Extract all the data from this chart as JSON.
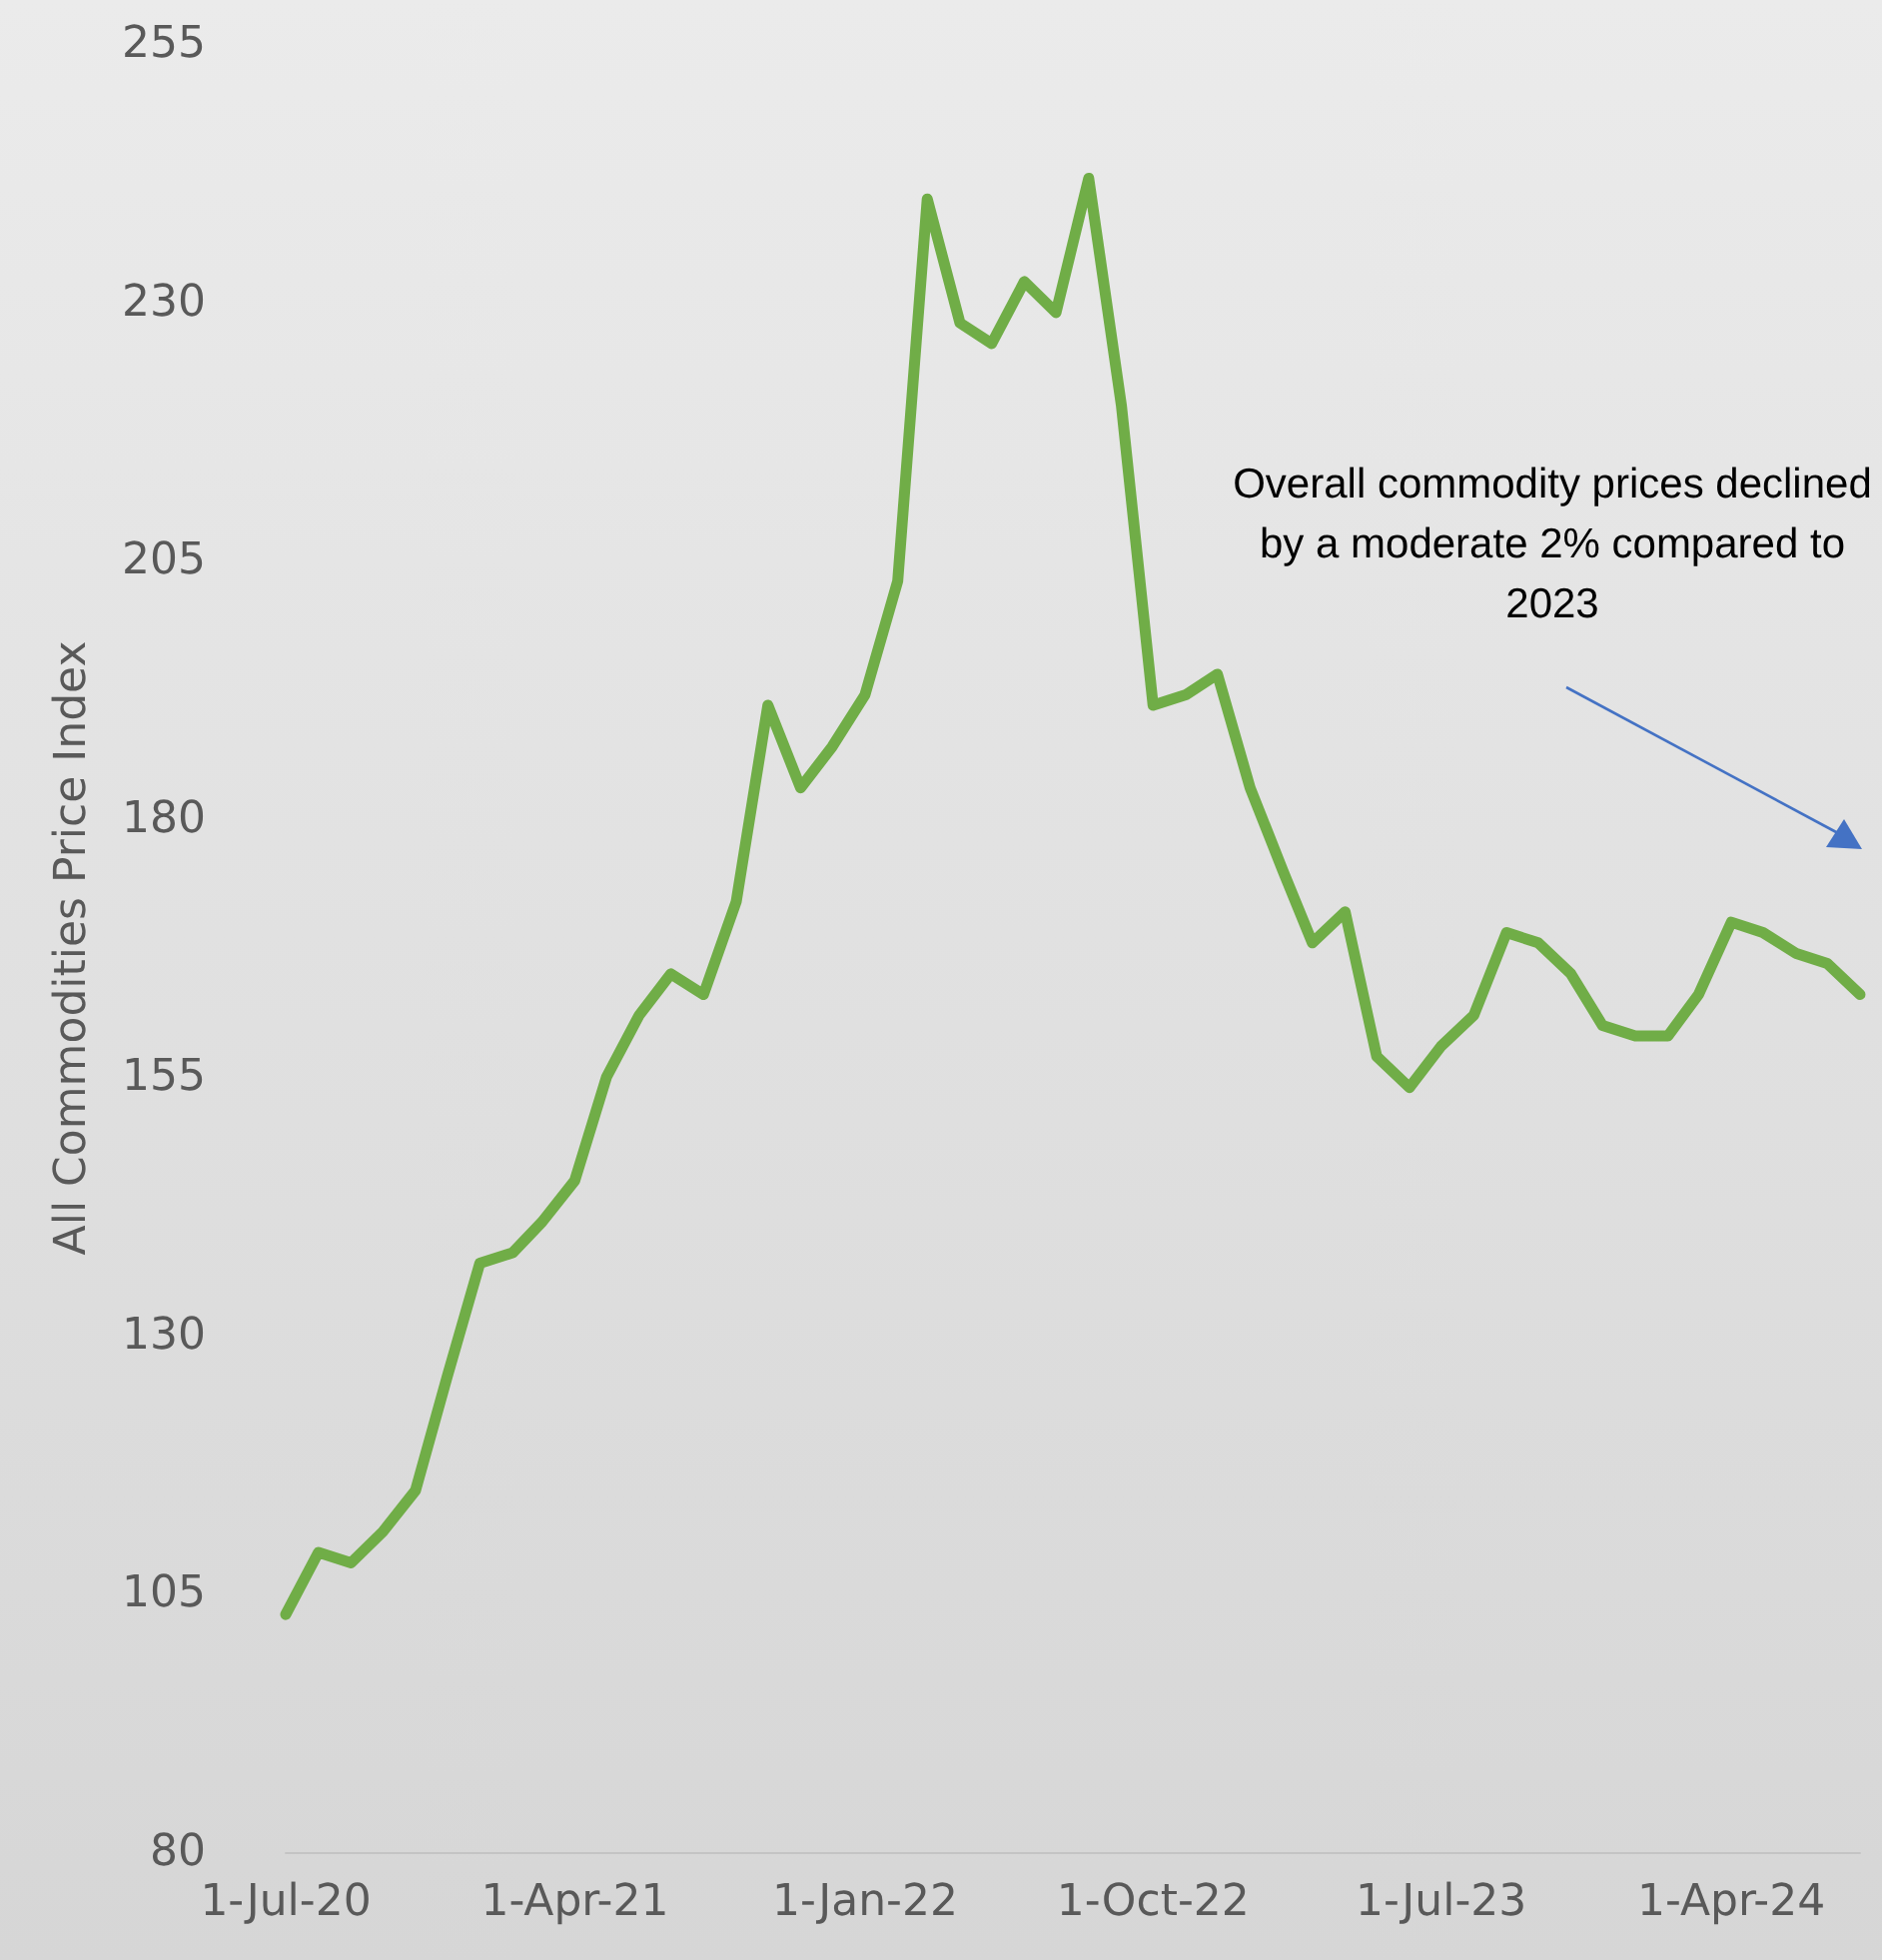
{
  "chart_data": {
    "type": "line",
    "ylabel": "All Commodities Price Index",
    "x": [
      "2020-07-01",
      "2020-08-01",
      "2020-09-01",
      "2020-10-01",
      "2020-11-01",
      "2020-12-01",
      "2021-01-01",
      "2021-02-01",
      "2021-03-01",
      "2021-04-01",
      "2021-05-01",
      "2021-06-01",
      "2021-07-01",
      "2021-08-01",
      "2021-09-01",
      "2021-10-01",
      "2021-11-01",
      "2021-12-01",
      "2022-01-01",
      "2022-02-01",
      "2022-03-01",
      "2022-04-01",
      "2022-05-01",
      "2022-06-01",
      "2022-07-01",
      "2022-08-01",
      "2022-09-01",
      "2022-10-01",
      "2022-11-01",
      "2022-12-01",
      "2023-01-01",
      "2023-02-01",
      "2023-03-01",
      "2023-04-01",
      "2023-05-01",
      "2023-06-01",
      "2023-07-01",
      "2023-08-01",
      "2023-09-01",
      "2023-10-01",
      "2023-11-01",
      "2023-12-01",
      "2024-01-01",
      "2024-02-01",
      "2024-03-01",
      "2024-04-01",
      "2024-05-01",
      "2024-06-01",
      "2024-07-01",
      "2024-08-01"
    ],
    "series": [
      {
        "color": "#70ad47",
        "values": [
          103,
          109,
          108,
          111,
          115,
          126,
          137,
          138,
          141,
          145,
          155,
          161,
          165,
          163,
          172,
          191,
          183,
          187,
          192,
          203,
          240,
          228,
          226,
          232,
          229,
          242,
          220,
          191,
          192,
          194,
          183,
          175,
          168,
          171,
          157,
          154,
          158,
          161,
          169,
          168,
          165,
          160,
          159,
          159,
          163,
          170,
          169,
          167,
          166,
          163
        ]
      }
    ],
    "xticks": [
      {
        "value": "2020-07-01",
        "label": "1-Jul-20"
      },
      {
        "value": "2021-04-01",
        "label": "1-Apr-21"
      },
      {
        "value": "2022-01-01",
        "label": "1-Jan-22"
      },
      {
        "value": "2022-10-01",
        "label": "1-Oct-22"
      },
      {
        "value": "2023-07-01",
        "label": "1-Jul-23"
      },
      {
        "value": "2024-04-01",
        "label": "1-Apr-24"
      }
    ],
    "xlim": [
      "2020-07-01",
      "2024-08-01"
    ],
    "ylim": [
      80,
      255
    ],
    "yticks": [
      80,
      105,
      130,
      155,
      180,
      205,
      230,
      255
    ],
    "grid": false,
    "marker": "none",
    "line_style": "solid",
    "annotations": [
      "Overall commodity prices declined by a moderate 2% compared to 2023"
    ]
  }
}
